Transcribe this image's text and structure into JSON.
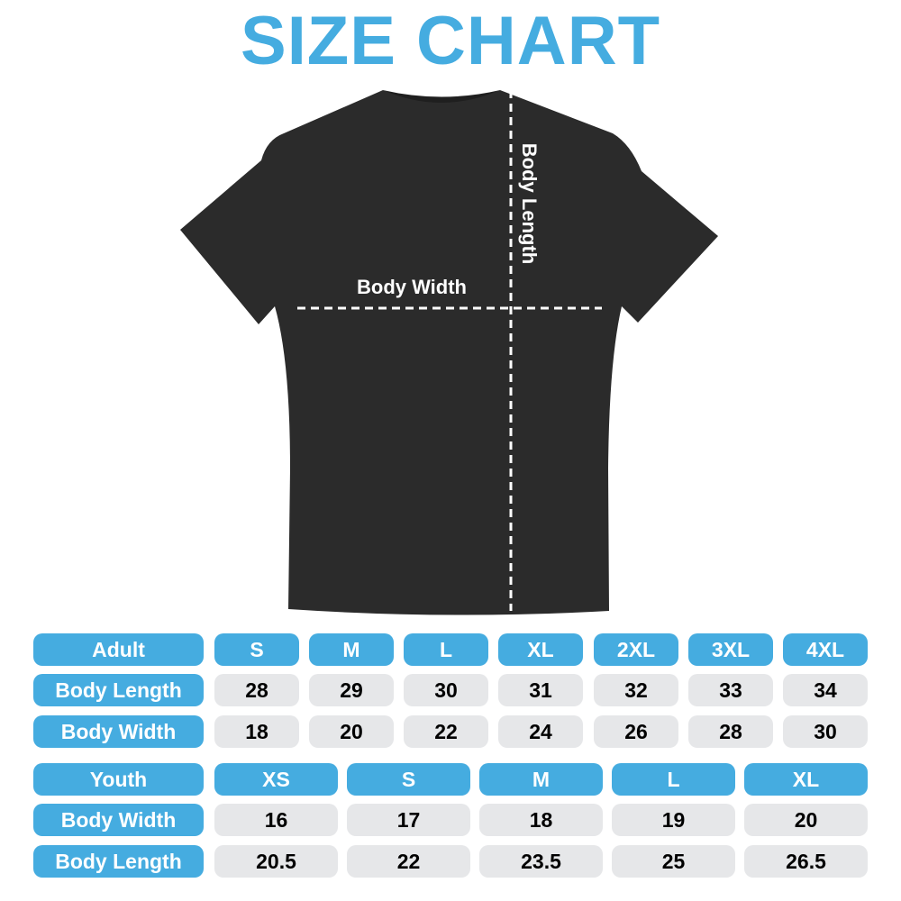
{
  "title": "SIZE CHART",
  "colors": {
    "accent": "#45ace0",
    "cell": "#e6e7e9",
    "shirt": "#2b2b2b"
  },
  "diagram": {
    "width_label": "Body Width",
    "length_label": "Body Length"
  },
  "adult": {
    "header": "Adult",
    "sizes": [
      "S",
      "M",
      "L",
      "XL",
      "2XL",
      "3XL",
      "4XL"
    ],
    "rows": [
      {
        "label": "Body Length",
        "values": [
          "28",
          "29",
          "30",
          "31",
          "32",
          "33",
          "34"
        ]
      },
      {
        "label": "Body Width",
        "values": [
          "18",
          "20",
          "22",
          "24",
          "26",
          "28",
          "30"
        ]
      }
    ]
  },
  "youth": {
    "header": "Youth",
    "sizes": [
      "XS",
      "S",
      "M",
      "L",
      "XL"
    ],
    "rows": [
      {
        "label": "Body Width",
        "values": [
          "16",
          "17",
          "18",
          "19",
          "20"
        ]
      },
      {
        "label": "Body Length",
        "values": [
          "20.5",
          "22",
          "23.5",
          "25",
          "26.5"
        ]
      }
    ]
  }
}
